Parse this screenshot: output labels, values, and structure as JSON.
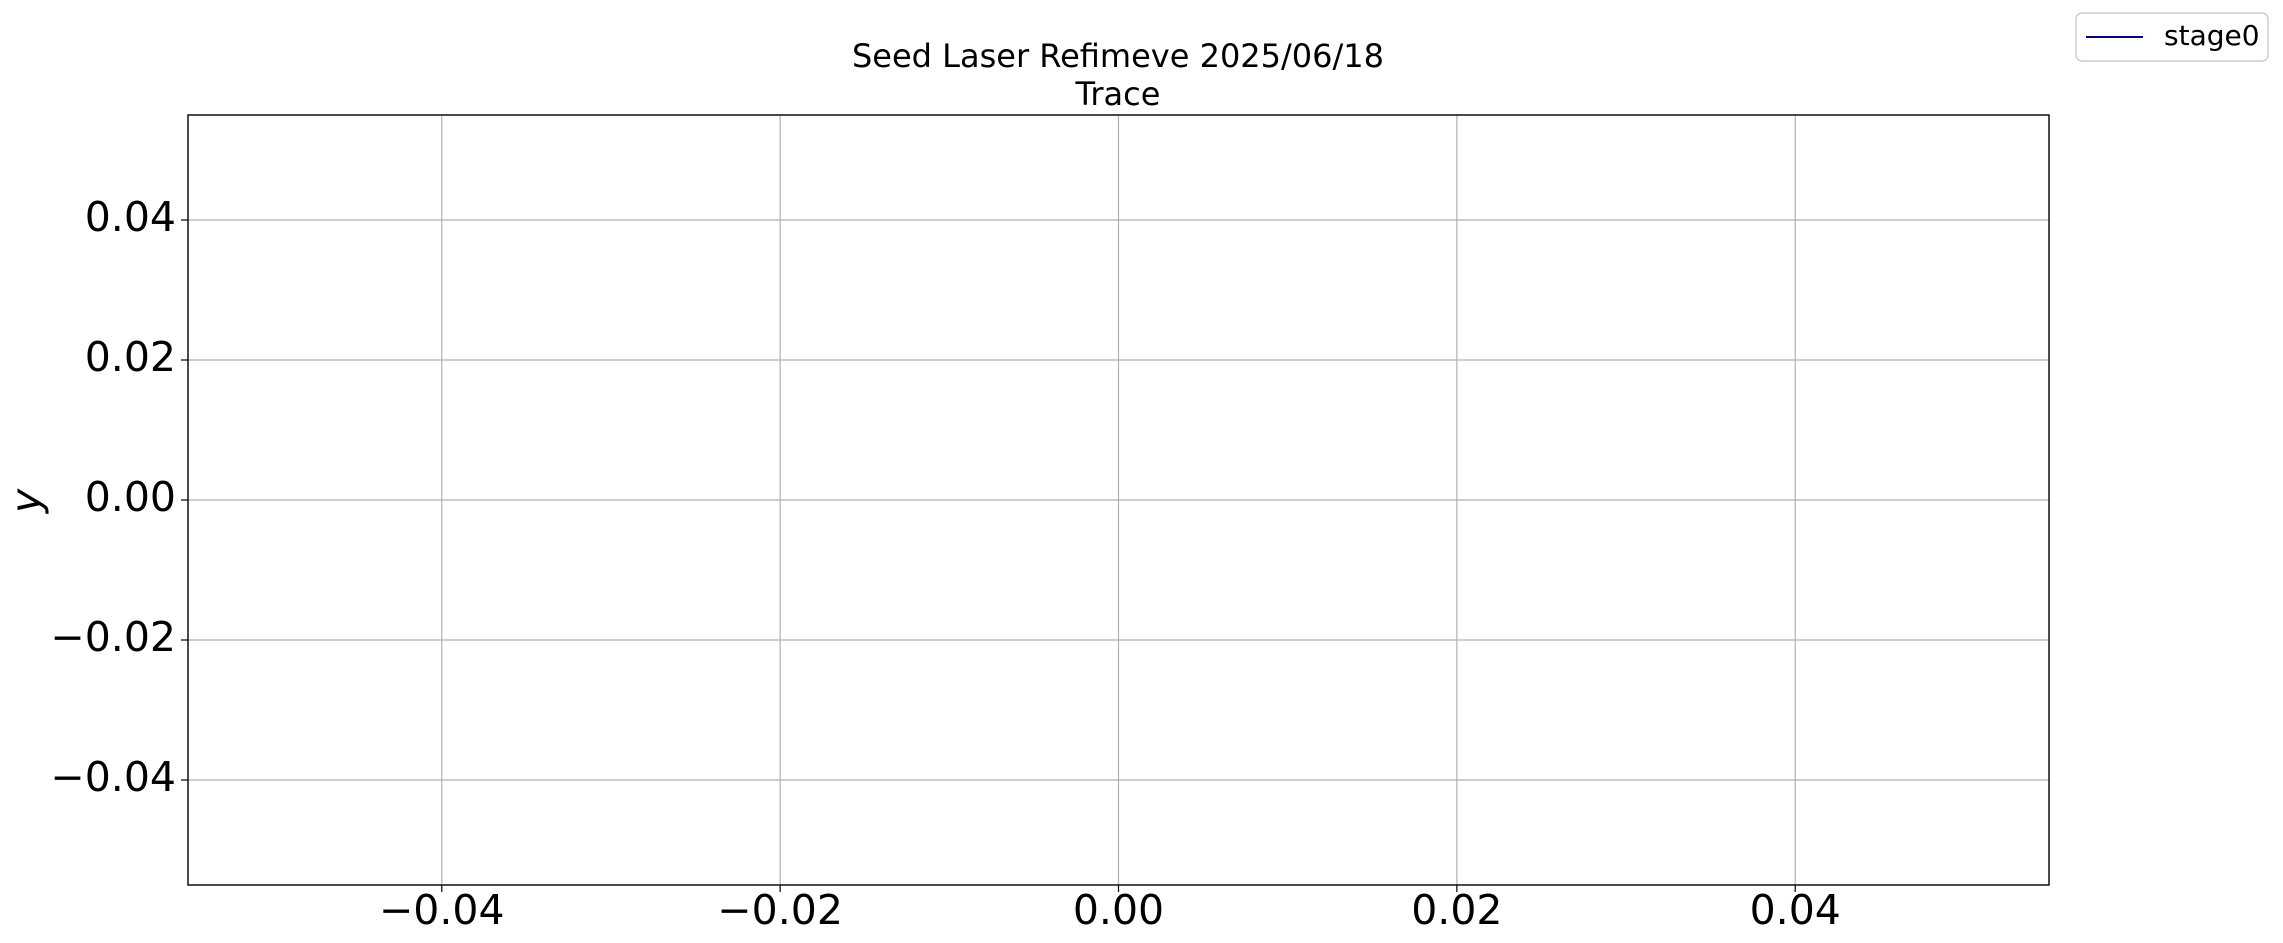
{
  "chart_data": {
    "type": "line",
    "title": "Seed Laser Refimeve 2025/06/18",
    "subtitle": "Trace",
    "y_label": "y",
    "x": [],
    "series": [
      {
        "name": "stage0",
        "color": "#000080",
        "values": []
      }
    ],
    "xlim": [
      -0.055,
      0.055
    ],
    "ylim": [
      -0.055,
      0.055
    ],
    "xticks": [
      {
        "value": -0.04,
        "label": "−0.04"
      },
      {
        "value": -0.02,
        "label": "−0.02"
      },
      {
        "value": 0,
        "label": "0.00"
      },
      0.02,
      0.04
    ],
    "yticks": [
      {
        "value": -0.04,
        "label": "−0.04"
      },
      {
        "value": -0.02,
        "label": "−0.02"
      },
      {
        "value": 0,
        "label": "0.00"
      },
      0.02,
      0.04
    ],
    "grid": true,
    "legend": "upper-right"
  }
}
